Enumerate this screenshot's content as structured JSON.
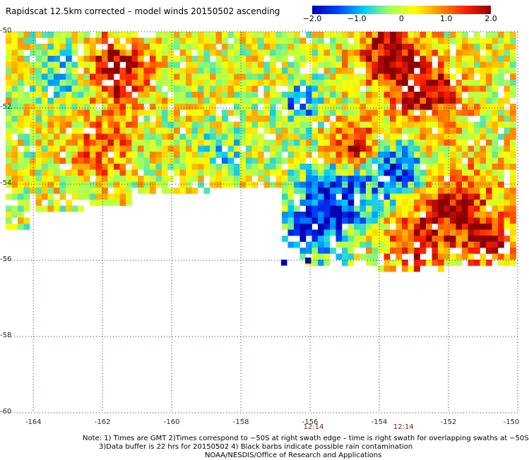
{
  "title": "Rapidscat 12.5km corrected – model winds 20150502 ascending",
  "colorbar": {
    "ticks": [
      "−2.0",
      "−1.0",
      "0",
      "1.0",
      "2.0"
    ],
    "tick_values": [
      -2.0,
      -1.0,
      0,
      1.0,
      2.0
    ],
    "min": -2.0,
    "max": 2.0,
    "colors": [
      "#0000b4",
      "#0040ff",
      "#00c8ff",
      "#a0ff60",
      "#ffff00",
      "#ff9000",
      "#ff2000",
      "#8b0000"
    ]
  },
  "latitude_labels": [
    "-50",
    "-52",
    "-54",
    "-56",
    "-58",
    "-60"
  ],
  "latitude_values": [
    -50,
    -52,
    -54,
    -56,
    -58,
    -60
  ],
  "longitude_labels": [
    "-164",
    "-162",
    "-160",
    "-158",
    "-156",
    "-154",
    "-152",
    "-150"
  ],
  "longitude_values": [
    -164,
    -162,
    -160,
    -158,
    -156,
    -154,
    -152,
    -150
  ],
  "time_labels": [
    {
      "text": "12:14",
      "lon": -155.9
    },
    {
      "text": "12:14",
      "lon": -153.3
    }
  ],
  "notes": {
    "line1": "Note: 1) Times are GMT 2)Times correspond to −50S at right swath edge – time is right swath for overlapping swaths at −50S",
    "line2": "3)Data buffer is 22 hrs for 20150502 4) Black barbs indicate possible rain contamination",
    "line3": "NOAA/NESDIS/Office of Research and Applications"
  },
  "map": {
    "lon_range": [
      -164.8,
      -150
    ],
    "lat_range": [
      -50,
      -60
    ],
    "grid_color": "#2a2a9a",
    "cell_deg": 0.125
  }
}
